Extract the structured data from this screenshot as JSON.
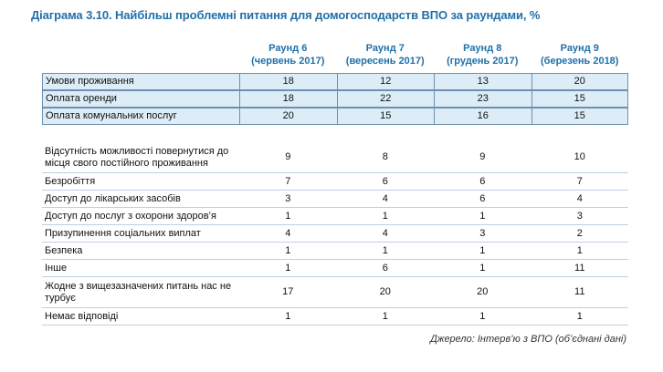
{
  "chart_data": {
    "type": "table",
    "title": "Діаграма 3.10. Найбільш проблемні питання для домогосподарств ВПО за раундами, %",
    "columns": [
      {
        "round": "Раунд 6",
        "period": "(червень 2017)"
      },
      {
        "round": "Раунд 7",
        "period": "(вересень 2017)"
      },
      {
        "round": "Раунд 8",
        "period": "(грудень 2017)"
      },
      {
        "round": "Раунд 9",
        "period": "(березень 2018)"
      }
    ],
    "rows": [
      {
        "label": "Умови проживання",
        "values": [
          "18",
          "12",
          "13",
          "20"
        ]
      },
      {
        "label": "Оплата оренди",
        "values": [
          "18",
          "22",
          "23",
          "15"
        ]
      },
      {
        "label": "Оплата комунальних послуг",
        "values": [
          "20",
          "15",
          "16",
          "15"
        ]
      },
      {
        "label": "Відсутність можливості повернутися до місця свого постійного проживання",
        "values": [
          "9",
          "8",
          "9",
          "10"
        ]
      },
      {
        "label": "Безробіття",
        "values": [
          "7",
          "6",
          "6",
          "7"
        ]
      },
      {
        "label": "Доступ до лікарських засобів",
        "values": [
          "3",
          "4",
          "6",
          "4"
        ]
      },
      {
        "label": "Доступ до послуг з охорони здоров’я",
        "values": [
          "1",
          "1",
          "1",
          "3"
        ]
      },
      {
        "label": "Призупинення соціальних виплат",
        "values": [
          "4",
          "4",
          "3",
          "2"
        ]
      },
      {
        "label": "Безпека",
        "values": [
          "1",
          "1",
          "1",
          "1"
        ]
      },
      {
        "label": "Інше",
        "values": [
          "1",
          "6",
          "1",
          "11"
        ]
      },
      {
        "label": "Жодне з вищезазначених питань нас не турбує",
        "values": [
          "17",
          "20",
          "20",
          "11"
        ]
      },
      {
        "label": "Немає відповіді",
        "values": [
          "1",
          "1",
          "1",
          "1"
        ]
      }
    ],
    "highlighted_rows": [
      0,
      1,
      2
    ],
    "source": "Джерело: Інтерв’ю з ВПО (об’єднані дані)"
  },
  "colors": {
    "title": "#1f6fa8",
    "highlight_fill": "#dcedf7",
    "highlight_border": "#6e8fb0",
    "row_divider": "#bfcfe0"
  }
}
